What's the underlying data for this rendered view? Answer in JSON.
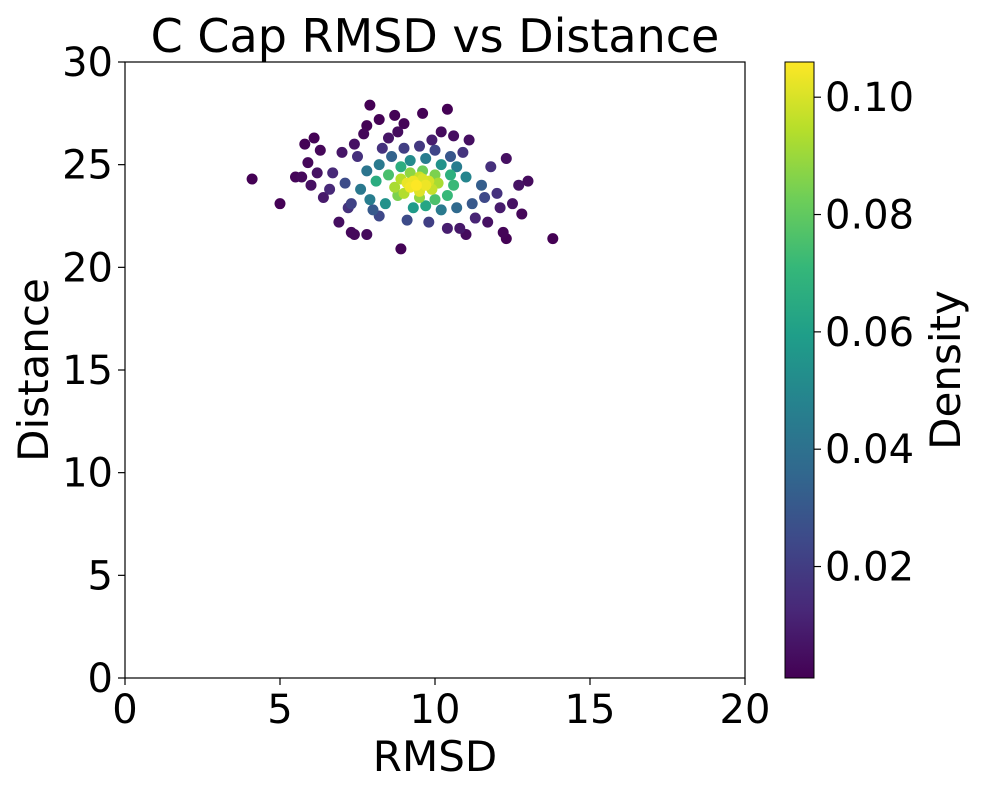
{
  "chart_data": {
    "type": "scatter",
    "title": "C Cap RMSD vs Distance",
    "xlabel": "RMSD",
    "ylabel": "Distance",
    "xlim": [
      0,
      20
    ],
    "ylim": [
      0,
      30
    ],
    "xticks": [
      0,
      5,
      10,
      15,
      20
    ],
    "yticks": [
      0,
      5,
      10,
      15,
      20,
      25,
      30
    ],
    "grid": false,
    "colorbar": {
      "label": "Density",
      "colormap": "viridis",
      "range": [
        0.001,
        0.106
      ],
      "ticks": [
        0.02,
        0.04,
        0.06,
        0.08,
        0.1
      ],
      "tick_labels": [
        "0.02",
        "0.04",
        "0.06",
        "0.08",
        "0.10"
      ],
      "colors": [
        "#440154",
        "#482878",
        "#3e4989",
        "#31688e",
        "#26828e",
        "#1f9e89",
        "#35b779",
        "#6ece58",
        "#b5de2b",
        "#fde725"
      ]
    },
    "series": [
      {
        "center": [
          9.4,
          24.0
        ],
        "points": [
          [
            4.1,
            24.3
          ],
          [
            5.0,
            23.1
          ],
          [
            5.5,
            24.4
          ],
          [
            5.8,
            26.0
          ],
          [
            6.1,
            26.3
          ],
          [
            5.9,
            25.1
          ],
          [
            6.3,
            25.7
          ],
          [
            6.0,
            24.0
          ],
          [
            6.4,
            23.4
          ],
          [
            6.9,
            22.2
          ],
          [
            7.2,
            22.9
          ],
          [
            7.3,
            21.7
          ],
          [
            7.4,
            21.6
          ],
          [
            7.8,
            21.6
          ],
          [
            8.2,
            22.5
          ],
          [
            8.9,
            20.9
          ],
          [
            7.9,
            27.9
          ],
          [
            7.8,
            26.9
          ],
          [
            7.7,
            26.5
          ],
          [
            8.2,
            27.2
          ],
          [
            8.7,
            27.4
          ],
          [
            9.0,
            27.0
          ],
          [
            9.6,
            27.5
          ],
          [
            10.4,
            27.7
          ],
          [
            10.2,
            26.6
          ],
          [
            11.1,
            26.2
          ],
          [
            10.9,
            25.6
          ],
          [
            12.3,
            25.3
          ],
          [
            12.7,
            24.0
          ],
          [
            13.0,
            24.2
          ],
          [
            12.5,
            23.1
          ],
          [
            12.8,
            22.6
          ],
          [
            12.2,
            21.7
          ],
          [
            12.3,
            21.4
          ],
          [
            13.8,
            21.4
          ],
          [
            11.3,
            22.4
          ],
          [
            10.8,
            21.9
          ],
          [
            11.0,
            21.6
          ],
          [
            10.4,
            21.9
          ],
          [
            9.8,
            22.2
          ],
          [
            9.1,
            22.3
          ],
          [
            8.3,
            25.8
          ],
          [
            8.5,
            26.3
          ],
          [
            7.5,
            25.4
          ],
          [
            7.0,
            25.6
          ],
          [
            6.7,
            24.6
          ],
          [
            7.1,
            24.1
          ],
          [
            7.6,
            23.8
          ],
          [
            7.9,
            23.3
          ],
          [
            8.4,
            23.1
          ],
          [
            8.8,
            23.5
          ],
          [
            9.3,
            22.9
          ],
          [
            9.7,
            23.0
          ],
          [
            10.2,
            22.8
          ],
          [
            10.7,
            22.9
          ],
          [
            11.2,
            23.1
          ],
          [
            11.6,
            23.4
          ],
          [
            12.0,
            23.6
          ],
          [
            11.5,
            24.0
          ],
          [
            11.0,
            24.4
          ],
          [
            10.7,
            24.9
          ],
          [
            10.5,
            25.4
          ],
          [
            10.0,
            25.7
          ],
          [
            9.5,
            25.9
          ],
          [
            9.0,
            25.8
          ],
          [
            8.6,
            25.4
          ],
          [
            8.2,
            25.0
          ],
          [
            7.8,
            24.7
          ],
          [
            8.1,
            24.2
          ],
          [
            8.5,
            24.5
          ],
          [
            8.9,
            24.9
          ],
          [
            9.2,
            25.2
          ],
          [
            9.7,
            25.3
          ],
          [
            10.2,
            25.0
          ],
          [
            10.5,
            24.5
          ],
          [
            10.6,
            24.0
          ],
          [
            10.4,
            23.5
          ],
          [
            10.0,
            23.3
          ],
          [
            9.5,
            23.4
          ],
          [
            9.0,
            23.6
          ],
          [
            8.7,
            23.9
          ],
          [
            8.9,
            24.3
          ],
          [
            9.2,
            24.6
          ],
          [
            9.6,
            24.7
          ],
          [
            10.0,
            24.5
          ],
          [
            10.1,
            24.1
          ],
          [
            9.9,
            23.8
          ],
          [
            9.5,
            23.7
          ],
          [
            9.2,
            23.9
          ],
          [
            9.3,
            24.2
          ],
          [
            9.6,
            24.3
          ],
          [
            9.7,
            24.0
          ],
          [
            9.4,
            24.0
          ],
          [
            9.1,
            24.1
          ],
          [
            9.8,
            24.2
          ],
          [
            9.5,
            24.4
          ],
          [
            6.6,
            23.8
          ],
          [
            5.7,
            24.4
          ],
          [
            6.2,
            24.6
          ],
          [
            7.3,
            23.1
          ],
          [
            8.0,
            22.8
          ],
          [
            11.8,
            24.9
          ],
          [
            12.1,
            22.9
          ],
          [
            11.7,
            22.2
          ],
          [
            7.4,
            26.0
          ],
          [
            8.8,
            26.6
          ],
          [
            9.9,
            26.2
          ],
          [
            10.6,
            26.4
          ]
        ]
      }
    ]
  }
}
